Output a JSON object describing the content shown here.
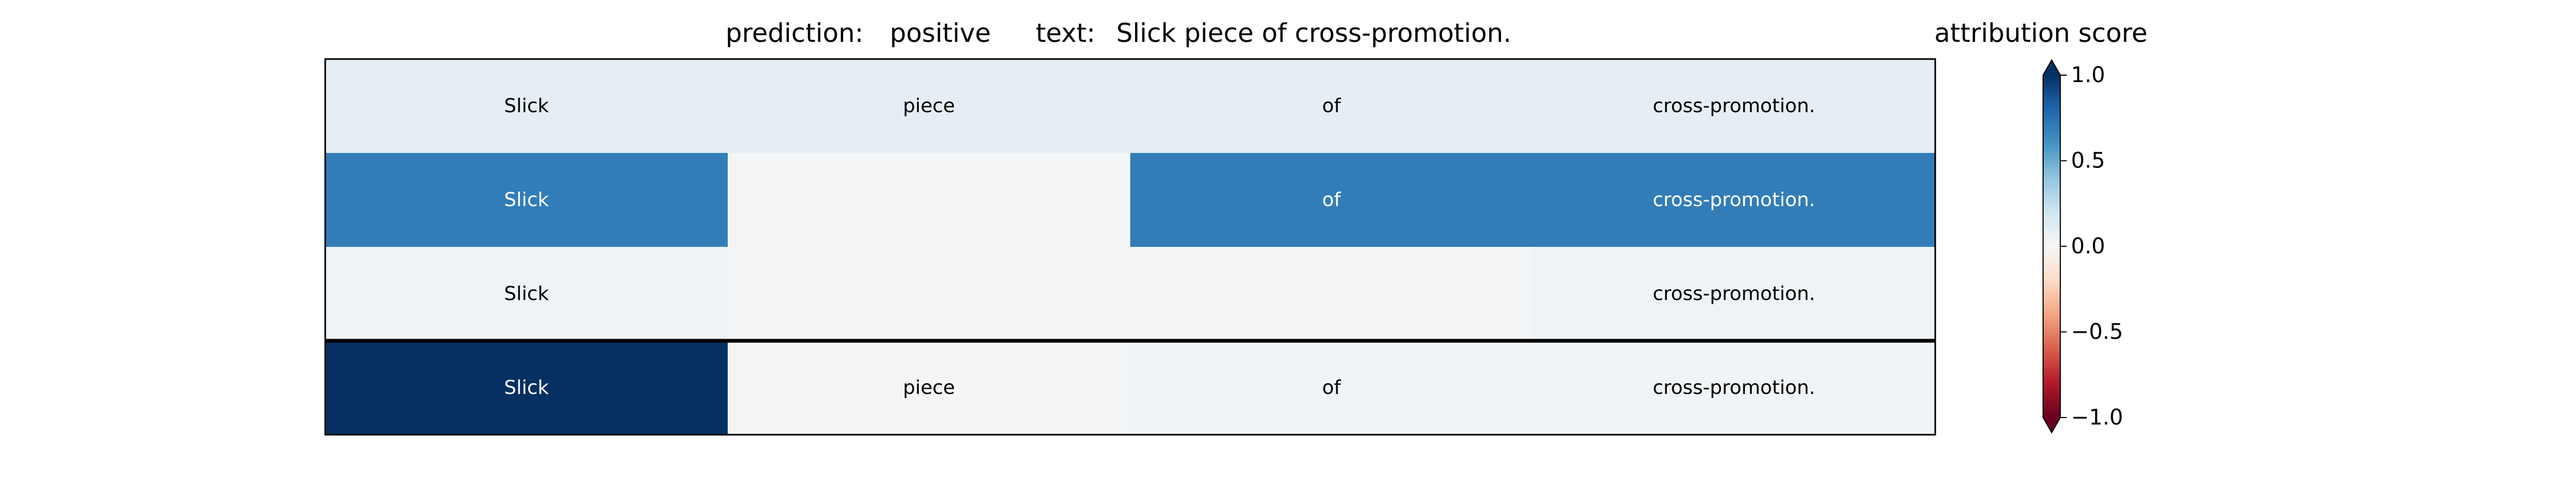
{
  "chart_data": {
    "type": "heatmap",
    "header": {
      "prediction_label": "prediction:",
      "prediction_value": "positive",
      "text_label": "text:",
      "text_value": "Slick piece of cross-promotion."
    },
    "tokens": [
      "Slick",
      "piece",
      "of",
      "cross-promotion."
    ],
    "rows": [
      {
        "cells": [
          {
            "text": "Slick",
            "value": 0.1
          },
          {
            "text": "piece",
            "value": 0.1
          },
          {
            "text": "of",
            "value": 0.1
          },
          {
            "text": "cross-promotion.",
            "value": 0.1
          }
        ]
      },
      {
        "cells": [
          {
            "text": "Slick",
            "value": 0.7
          },
          {
            "text": "",
            "value": 0.02
          },
          {
            "text": "of",
            "value": 0.7
          },
          {
            "text": "cross-promotion.",
            "value": 0.7
          }
        ]
      },
      {
        "cells": [
          {
            "text": "Slick",
            "value": 0.04
          },
          {
            "text": "",
            "value": 0.02
          },
          {
            "text": "",
            "value": 0.02
          },
          {
            "text": "cross-promotion.",
            "value": 0.04
          }
        ]
      },
      {
        "cells": [
          {
            "text": "Slick",
            "value": 1.0
          },
          {
            "text": "piece",
            "value": 0.02
          },
          {
            "text": "of",
            "value": 0.03
          },
          {
            "text": "cross-promotion.",
            "value": 0.03
          }
        ]
      }
    ],
    "colorbar": {
      "title": "attribution score",
      "min": -1.0,
      "max": 1.0,
      "ticks": [
        1.0,
        0.5,
        0.0,
        -0.5,
        -1.0
      ],
      "tick_labels": [
        "1.0",
        "0.5",
        "0.0",
        "−0.5",
        "−1.0"
      ],
      "colormap": "RdBu"
    },
    "separator_after_row": 3
  }
}
